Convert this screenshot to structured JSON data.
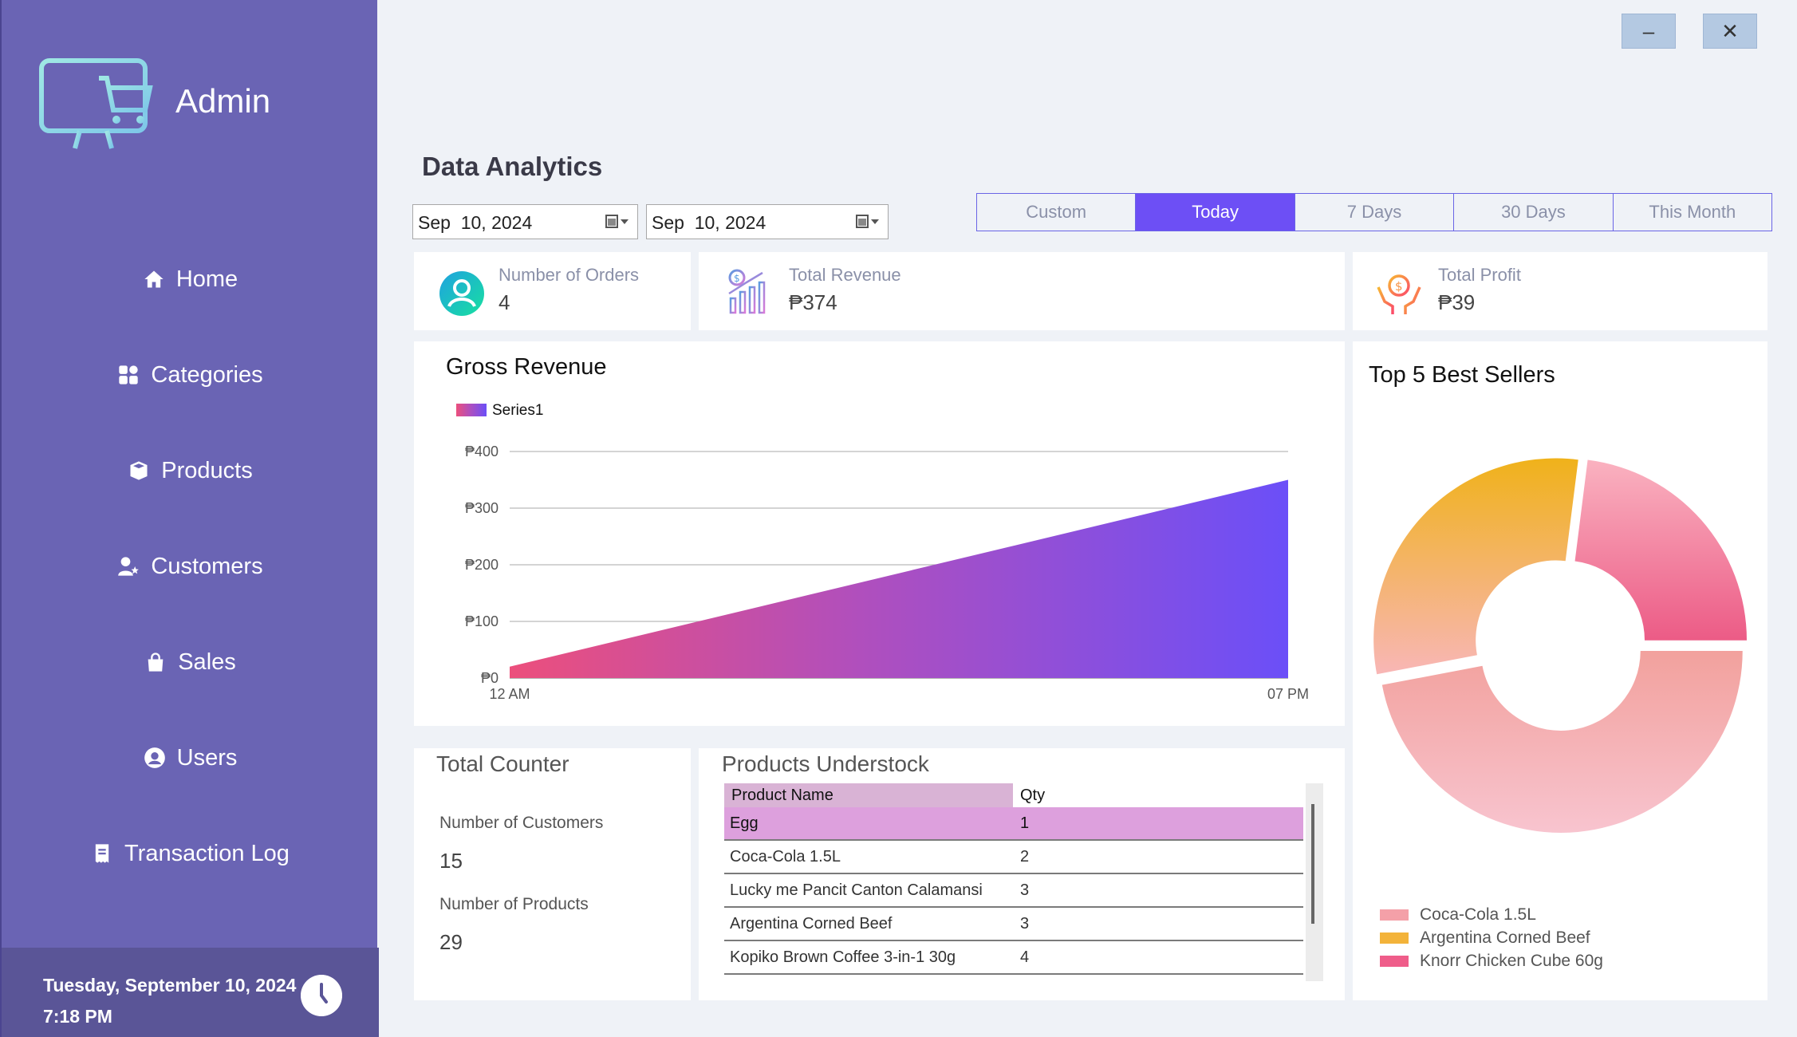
{
  "sidebar": {
    "title": "Admin",
    "items": [
      {
        "label": "Home",
        "icon": "home-icon"
      },
      {
        "label": "Categories",
        "icon": "grid-icon"
      },
      {
        "label": "Products",
        "icon": "box-icon"
      },
      {
        "label": "Customers",
        "icon": "user-star-icon"
      },
      {
        "label": "Sales",
        "icon": "bag-icon"
      },
      {
        "label": "Users",
        "icon": "user-circle-icon"
      },
      {
        "label": "Transaction Log",
        "icon": "receipt-icon"
      }
    ],
    "footer_date": "Tuesday, September 10, 2024",
    "footer_time": "7:18 PM"
  },
  "window": {
    "minimize_label": "–",
    "close_label": "✕"
  },
  "main": {
    "title": "Data Analytics",
    "date_from": "Sep  10, 2024",
    "date_to": "Sep  10, 2024",
    "range_tabs": [
      "Custom",
      "Today",
      "7 Days",
      "30 Days",
      "This Month"
    ],
    "active_tab": "Today"
  },
  "stats": {
    "orders": {
      "label": "Number of Orders",
      "value": "4"
    },
    "revenue": {
      "label": "Total Revenue",
      "value": "₱374"
    },
    "profit": {
      "label": "Total Profit",
      "value": "₱39"
    }
  },
  "total_counter": {
    "title": "Total Counter",
    "customers_label": "Number of Customers",
    "customers_value": "15",
    "products_label": "Number of Products",
    "products_value": "29"
  },
  "understock": {
    "title": "Products Understock",
    "headers": [
      "Product Name",
      "Qty"
    ],
    "rows": [
      [
        "Egg",
        "1"
      ],
      [
        "Coca-Cola 1.5L",
        "2"
      ],
      [
        "Lucky me Pancit Canton Calamansi",
        "3"
      ],
      [
        "Argentina Corned Beef",
        "3"
      ],
      [
        "Kopiko Brown Coffee 3-in-1 30g",
        "4"
      ]
    ]
  },
  "colors": {
    "sidebar": "#6a64b4",
    "accent": "#6d4ff5",
    "background": "#eff2f7"
  },
  "chart_data": [
    {
      "type": "area",
      "title": "Gross Revenue",
      "series": [
        {
          "name": "Series1",
          "values": [
            20,
            350
          ]
        }
      ],
      "x": [
        "12 AM",
        "07 PM"
      ],
      "ylim": [
        0,
        400
      ],
      "yticks": [
        "₱0",
        "₱100",
        "₱200",
        "₱300",
        "₱400"
      ],
      "grid": true,
      "legend": "top-left"
    },
    {
      "type": "pie",
      "title": "Top 5 Best Sellers",
      "donut": true,
      "labels": [
        "Coca-Cola 1.5L",
        "Argentina Corned Beef",
        "Knorr Chicken Cube 60g"
      ],
      "values": [
        47,
        30,
        23
      ],
      "colors": [
        "#f4a0a8",
        "#f3b33a",
        "#ef5d8a"
      ],
      "legend": "bottom-left"
    }
  ]
}
